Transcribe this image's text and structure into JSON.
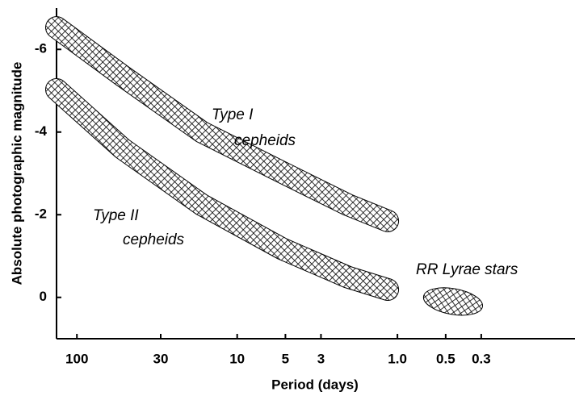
{
  "chart_data": {
    "type": "line",
    "xlabel": "Period (days)",
    "ylabel": "Absolute photographic magnitude",
    "xscale": "log",
    "xlim": [
      134,
      0.078
    ],
    "ylim": [
      1,
      -7
    ],
    "xticks": [
      100,
      30,
      10,
      5,
      3,
      {
        "value": 1,
        "label": "1.0"
      },
      0.5,
      0.3
    ],
    "yticks": [
      -6,
      -4,
      -2,
      0
    ],
    "annotations": [
      "Type I",
      "cepheids",
      "Type II",
      "cepheids",
      "RR Lyrae stars"
    ],
    "series": [
      {
        "color": "#000000",
        "x": [
          134,
          52,
          16.6,
          5.2,
          2.04,
          1.15
        ],
        "values": [
          -6.53,
          -5.36,
          -4.0,
          -3.02,
          -2.24,
          -1.85
        ]
      },
      {
        "color": "#000000",
        "x": [
          134,
          52,
          16.6,
          5.2,
          2.04,
          1.15
        ],
        "values": [
          -5.03,
          -3.6,
          -2.24,
          -1.17,
          -0.49,
          -0.19
        ]
      },
      {
        "color": "#000000",
        "type": "blob",
        "x": [
          0.45
        ],
        "values": [
          0.1
        ]
      }
    ]
  }
}
